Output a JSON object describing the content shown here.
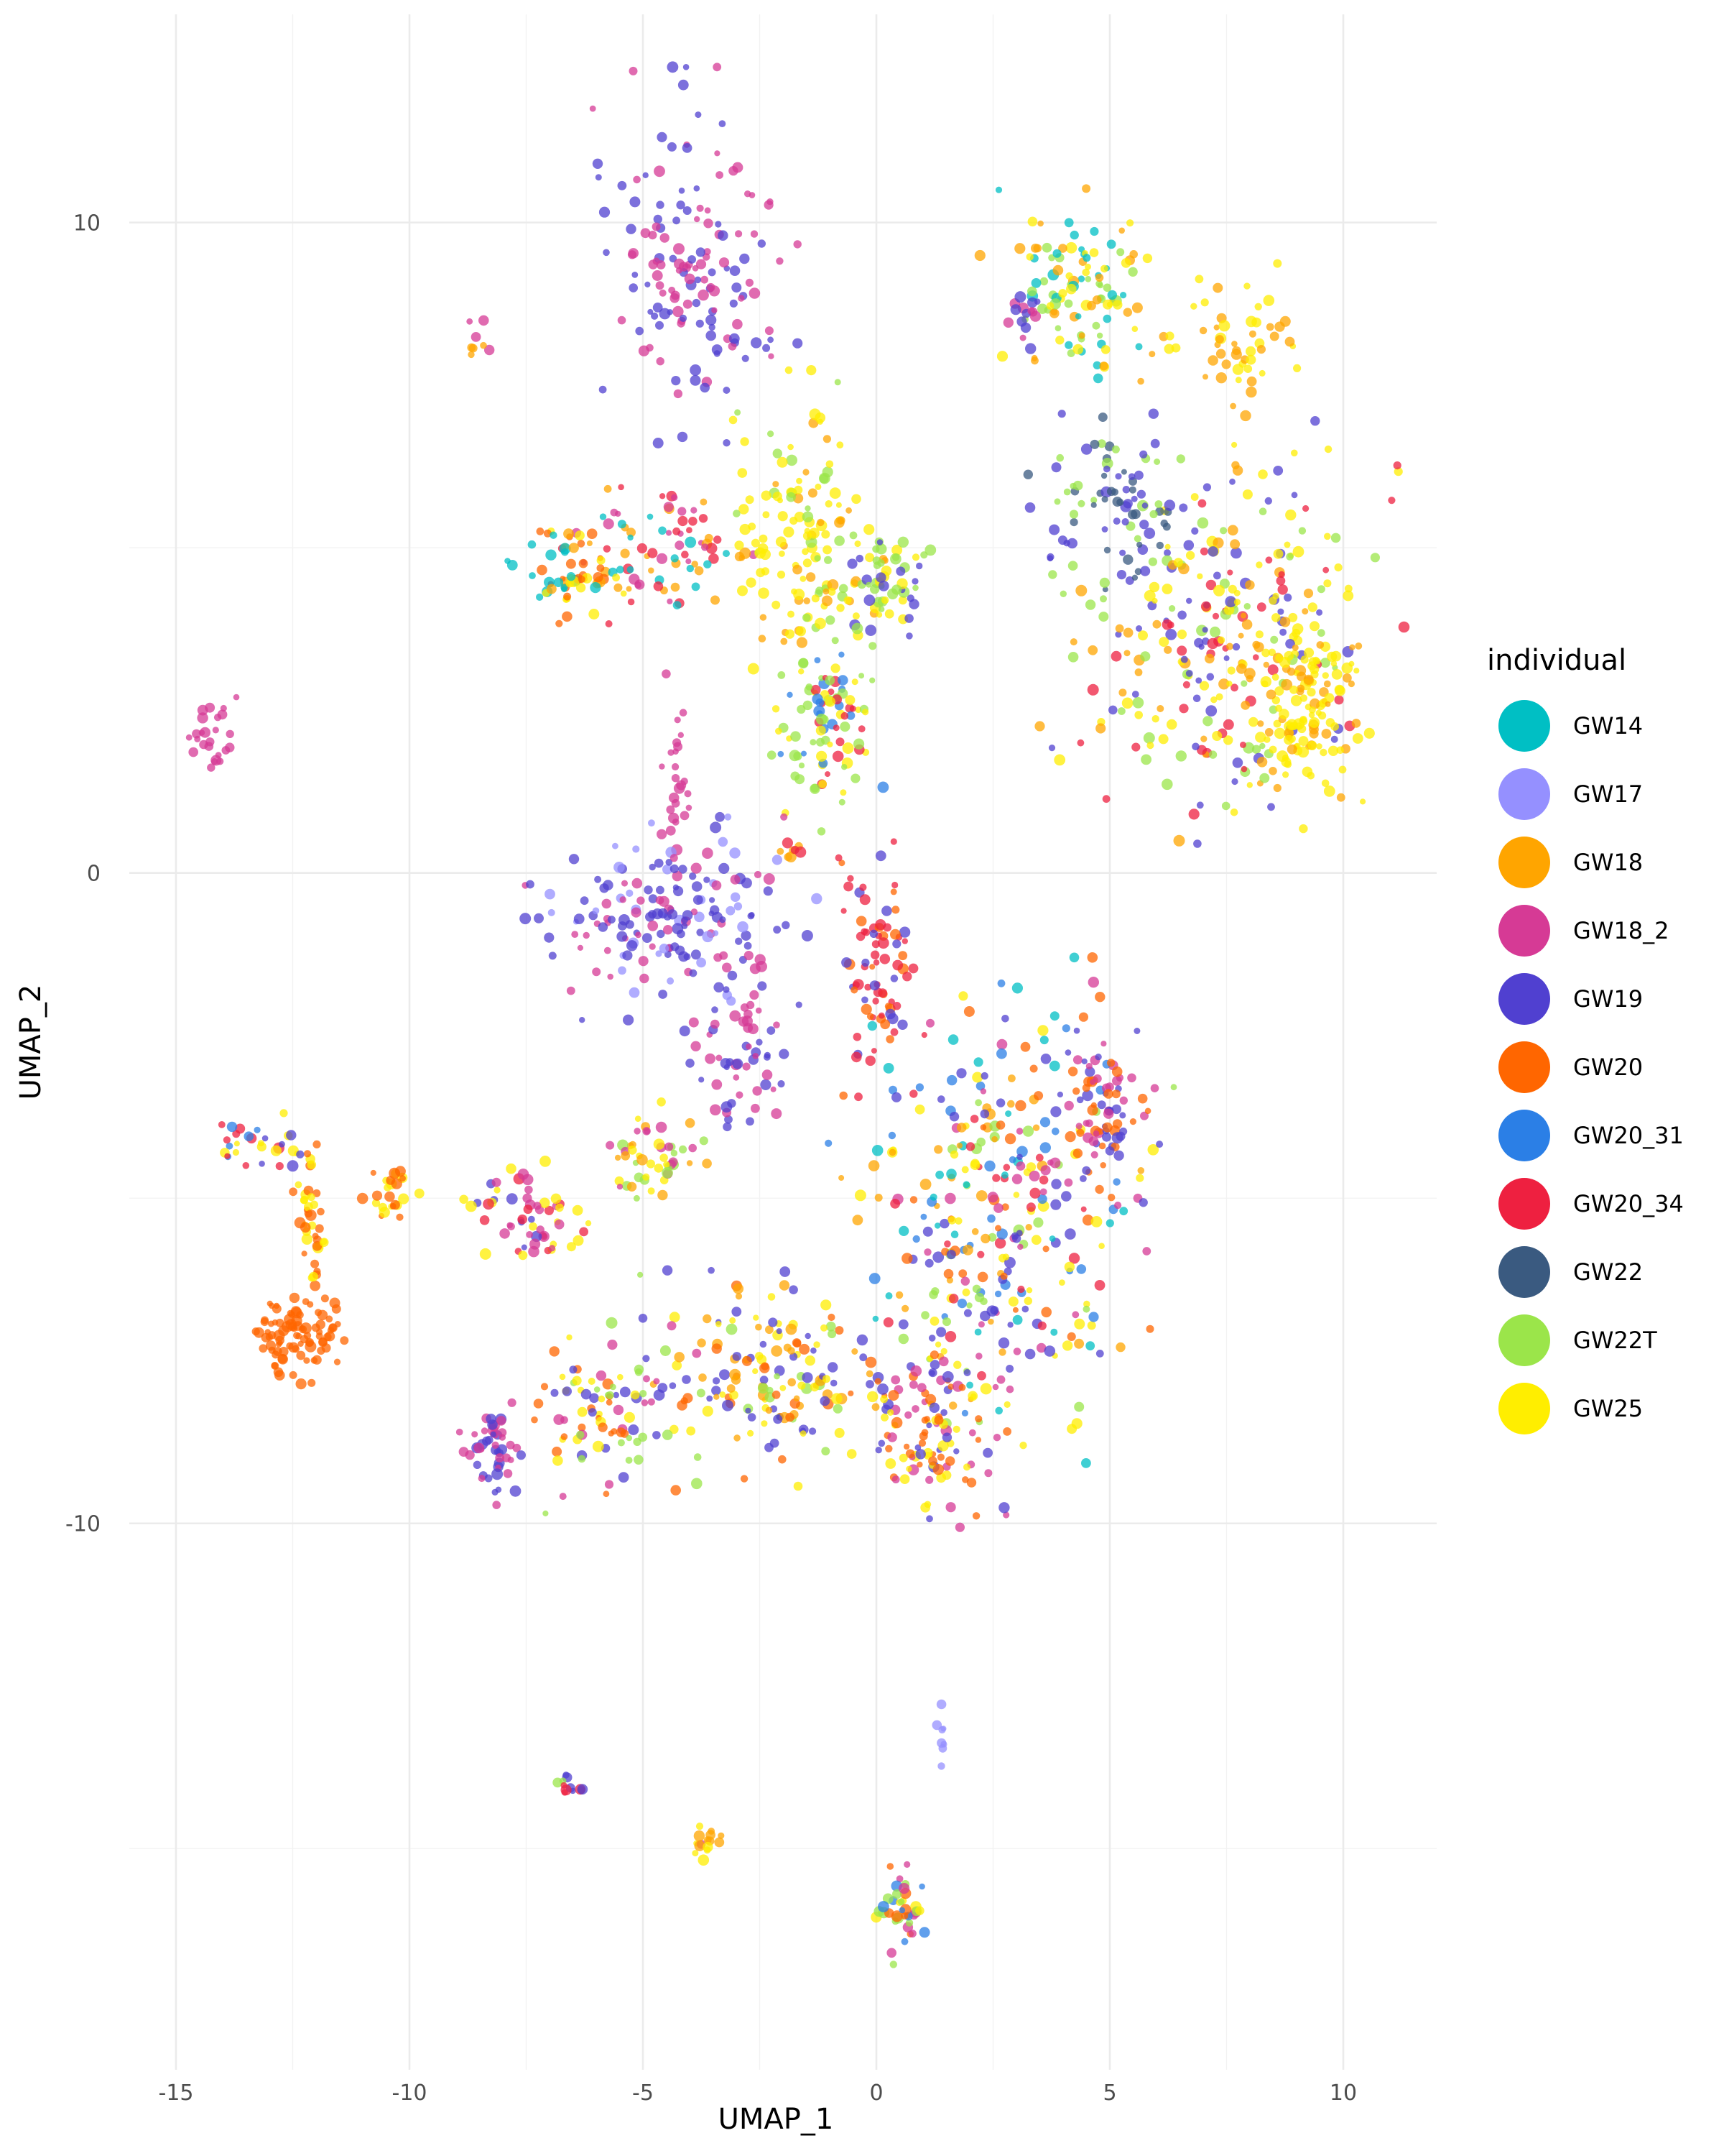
{
  "chart_data": {
    "type": "scatter",
    "title": "",
    "xlabel": "UMAP_1",
    "ylabel": "UMAP_2",
    "xlim": [
      -16,
      12
    ],
    "ylim": [
      -18.4,
      13.2
    ],
    "x_ticks": [
      -15,
      -10,
      -5,
      0,
      5,
      10
    ],
    "x_tick_labels": [
      "-15",
      "-10",
      "-5",
      "0",
      "5",
      "10"
    ],
    "y_ticks": [
      10,
      0,
      -10
    ],
    "y_tick_labels": [
      "10",
      "0",
      "-10"
    ],
    "grid": true,
    "legend": {
      "title": "individual",
      "placement": "right",
      "entries": [
        {
          "name": "GW14",
          "color": "#00BFC4"
        },
        {
          "name": "GW17",
          "color": "#9590FF"
        },
        {
          "name": "GW18",
          "color": "#FFA500"
        },
        {
          "name": "GW18_2",
          "color": "#D63A95"
        },
        {
          "name": "GW19",
          "color": "#5040D0"
        },
        {
          "name": "GW20",
          "color": "#FF6600"
        },
        {
          "name": "GW20_31",
          "color": "#2B7FE6"
        },
        {
          "name": "GW20_34",
          "color": "#EE2040"
        },
        {
          "name": "GW22",
          "color": "#3A5A80"
        },
        {
          "name": "GW22T",
          "color": "#9BE54A"
        },
        {
          "name": "GW25",
          "color": "#FFEE00"
        }
      ]
    },
    "clusters": [
      {
        "x": -3.9,
        "y": 9.4,
        "rx": 1.7,
        "ry": 2.3,
        "n": 150,
        "series": [
          "GW18_2",
          "GW19",
          "GW18_2",
          "GW19"
        ]
      },
      {
        "x": -4.8,
        "y": 5.0,
        "rx": 1.8,
        "ry": 0.9,
        "n": 80,
        "series": [
          "GW18_2",
          "GW14",
          "GW18",
          "GW20_34"
        ]
      },
      {
        "x": -6.6,
        "y": 4.6,
        "rx": 1.0,
        "ry": 0.8,
        "n": 60,
        "series": [
          "GW18",
          "GW25",
          "GW14",
          "GW20"
        ]
      },
      {
        "x": -1.6,
        "y": 5.0,
        "rx": 1.4,
        "ry": 2.1,
        "n": 140,
        "series": [
          "GW25",
          "GW22T",
          "GW18",
          "GW25"
        ]
      },
      {
        "x": -1.0,
        "y": 2.2,
        "rx": 1.1,
        "ry": 1.2,
        "n": 90,
        "series": [
          "GW20_34",
          "GW20_31",
          "GW22T",
          "GW25"
        ]
      },
      {
        "x": 0.2,
        "y": 4.5,
        "rx": 0.9,
        "ry": 0.9,
        "n": 60,
        "series": [
          "GW22T",
          "GW25",
          "GW19"
        ]
      },
      {
        "x": 0.0,
        "y": -1.5,
        "rx": 0.7,
        "ry": 1.6,
        "n": 80,
        "series": [
          "GW20_34",
          "GW20",
          "GW20_34",
          "GW19"
        ]
      },
      {
        "x": 4.3,
        "y": 8.9,
        "rx": 1.6,
        "ry": 1.3,
        "n": 110,
        "series": [
          "GW18",
          "GW25",
          "GW22T",
          "GW14"
        ]
      },
      {
        "x": 7.8,
        "y": 8.2,
        "rx": 1.3,
        "ry": 0.9,
        "n": 50,
        "series": [
          "GW18",
          "GW25"
        ]
      },
      {
        "x": 7.4,
        "y": 3.7,
        "rx": 3.0,
        "ry": 2.5,
        "n": 280,
        "series": [
          "GW19",
          "GW25",
          "GW18",
          "GW20_34",
          "GW22T",
          "GW25"
        ]
      },
      {
        "x": 5.2,
        "y": 5.5,
        "rx": 1.5,
        "ry": 1.2,
        "n": 90,
        "series": [
          "GW22T",
          "GW19",
          "GW22"
        ]
      },
      {
        "x": 9.2,
        "y": 2.5,
        "rx": 1.3,
        "ry": 1.4,
        "n": 120,
        "series": [
          "GW25",
          "GW18",
          "GW25"
        ]
      },
      {
        "x": -4.4,
        "y": -0.7,
        "rx": 2.4,
        "ry": 1.2,
        "n": 170,
        "series": [
          "GW19",
          "GW18_2",
          "GW19",
          "GW17"
        ]
      },
      {
        "x": -2.9,
        "y": -2.6,
        "rx": 1.0,
        "ry": 1.3,
        "n": 60,
        "series": [
          "GW18_2",
          "GW19"
        ]
      },
      {
        "x": 2.6,
        "y": -5.2,
        "rx": 2.9,
        "ry": 3.0,
        "n": 320,
        "series": [
          "GW20",
          "GW20_31",
          "GW19",
          "GW18_2",
          "GW25",
          "GW22T",
          "GW20_34",
          "GW14",
          "GW18"
        ]
      },
      {
        "x": 4.8,
        "y": -3.5,
        "rx": 0.9,
        "ry": 1.4,
        "n": 80,
        "series": [
          "GW18_2",
          "GW19",
          "GW20"
        ]
      },
      {
        "x": 1.2,
        "y": -8.5,
        "rx": 1.6,
        "ry": 1.2,
        "n": 120,
        "series": [
          "GW19",
          "GW18_2",
          "GW25",
          "GW20"
        ]
      },
      {
        "x": -2.2,
        "y": -7.8,
        "rx": 2.2,
        "ry": 1.3,
        "n": 160,
        "series": [
          "GW25",
          "GW22T",
          "GW18",
          "GW20",
          "GW19"
        ]
      },
      {
        "x": -5.8,
        "y": -8.3,
        "rx": 1.5,
        "ry": 1.2,
        "n": 90,
        "series": [
          "GW25",
          "GW20",
          "GW18_2",
          "GW19",
          "GW22T"
        ]
      },
      {
        "x": -8.2,
        "y": -8.9,
        "rx": 0.6,
        "ry": 0.8,
        "n": 50,
        "series": [
          "GW18_2",
          "GW19"
        ]
      },
      {
        "x": -7.3,
        "y": -5.3,
        "rx": 1.2,
        "ry": 0.7,
        "n": 60,
        "series": [
          "GW25",
          "GW18_2",
          "GW19",
          "GW20_34"
        ]
      },
      {
        "x": -4.8,
        "y": -4.3,
        "rx": 0.9,
        "ry": 0.6,
        "n": 50,
        "series": [
          "GW18",
          "GW18_2",
          "GW25",
          "GW22T"
        ]
      },
      {
        "x": -12.4,
        "y": -7.1,
        "rx": 0.9,
        "ry": 0.7,
        "n": 90,
        "series": [
          "GW20"
        ]
      },
      {
        "x": -12.1,
        "y": -5.5,
        "rx": 0.3,
        "ry": 1.1,
        "n": 40,
        "series": [
          "GW20",
          "GW25"
        ]
      },
      {
        "x": -13.2,
        "y": -4.2,
        "rx": 0.9,
        "ry": 0.4,
        "n": 30,
        "series": [
          "GW19",
          "GW25",
          "GW20_31",
          "GW20_34"
        ]
      },
      {
        "x": -10.4,
        "y": -4.9,
        "rx": 0.6,
        "ry": 0.4,
        "n": 25,
        "series": [
          "GW20",
          "GW25"
        ]
      },
      {
        "x": -14.2,
        "y": 2.1,
        "rx": 0.4,
        "ry": 0.6,
        "n": 25,
        "series": [
          "GW18_2"
        ]
      },
      {
        "x": -8.5,
        "y": 8.2,
        "rx": 0.2,
        "ry": 0.4,
        "n": 8,
        "series": [
          "GW18_2",
          "GW18"
        ]
      },
      {
        "x": 3.2,
        "y": 8.6,
        "rx": 0.3,
        "ry": 0.6,
        "n": 15,
        "series": [
          "GW19",
          "GW18_2"
        ]
      },
      {
        "x": -6.6,
        "y": -14.0,
        "rx": 0.3,
        "ry": 0.2,
        "n": 12,
        "series": [
          "GW22T",
          "GW20_34",
          "GW19"
        ]
      },
      {
        "x": -3.6,
        "y": -15.0,
        "rx": 0.4,
        "ry": 0.3,
        "n": 15,
        "series": [
          "GW25",
          "GW18",
          "GW18_2"
        ]
      },
      {
        "x": 0.5,
        "y": -16.0,
        "rx": 0.5,
        "ry": 0.6,
        "n": 40,
        "series": [
          "GW22T",
          "GW20",
          "GW20_31",
          "GW25",
          "GW18_2"
        ]
      },
      {
        "x": 1.4,
        "y": -13.2,
        "rx": 0.1,
        "ry": 0.5,
        "n": 8,
        "series": [
          "GW17"
        ]
      },
      {
        "x": -1.8,
        "y": 0.3,
        "rx": 0.3,
        "ry": 0.2,
        "n": 8,
        "series": [
          "GW18",
          "GW20_34"
        ]
      },
      {
        "x": -4.3,
        "y": 1.5,
        "rx": 0.3,
        "ry": 1.2,
        "n": 25,
        "series": [
          "GW18_2"
        ]
      }
    ]
  }
}
